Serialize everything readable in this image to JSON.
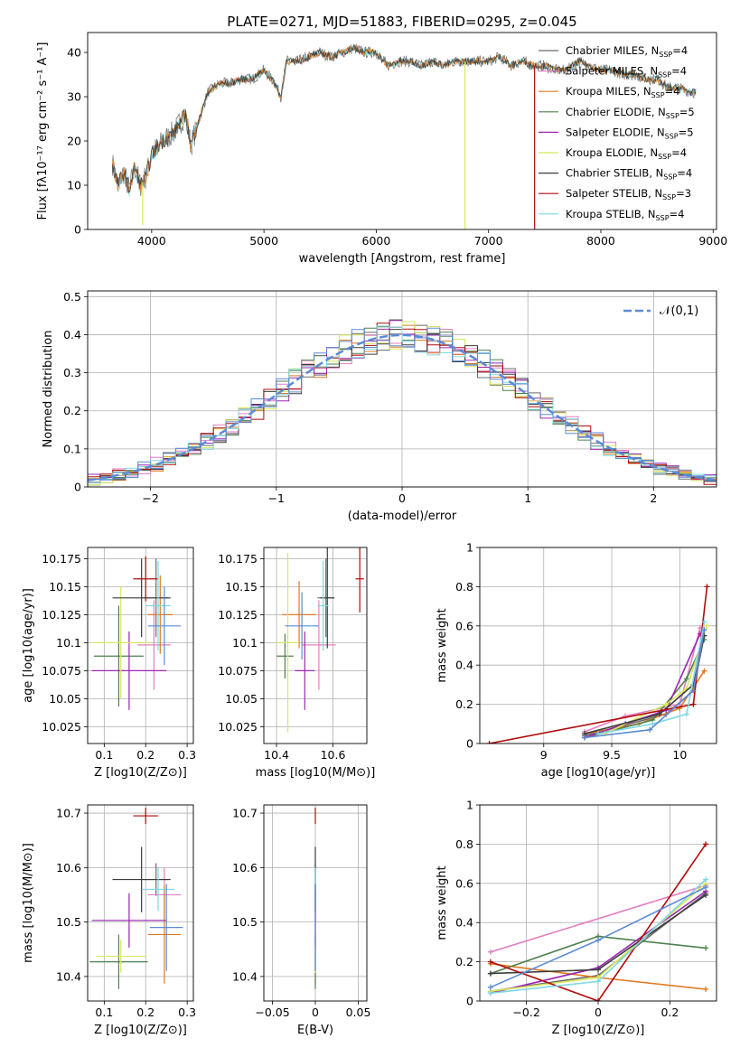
{
  "figure_title": "PLATE=0271, MJD=51883, FIBERID=0295, z=0.045",
  "models": [
    {
      "name": "Chabrier MILES",
      "nssp": "4",
      "color": "#6b6b6b"
    },
    {
      "name": "Salpeter MILES",
      "nssp": "4",
      "color": "#e37fbf"
    },
    {
      "name": "Kroupa MILES",
      "nssp": "4",
      "color": "#e07a22"
    },
    {
      "name": "Chabrier ELODIE",
      "nssp": "5",
      "color": "#4f7f4f"
    },
    {
      "name": "Salpeter ELODIE",
      "nssp": "5",
      "color": "#9b27b0"
    },
    {
      "name": "Kroupa ELODIE",
      "nssp": "4",
      "color": "#d8e85a"
    },
    {
      "name": "Chabrier STELIB",
      "nssp": "4",
      "color": "#3c3c3c"
    },
    {
      "name": "Salpeter STELIB",
      "nssp": "3",
      "color": "#b00b0b"
    },
    {
      "name": "Kroupa STELIB",
      "nssp": "4",
      "color": "#7fd9e3"
    }
  ],
  "chart_data": [
    {
      "type": "line",
      "name": "spectrum",
      "xlabel": "wavelength [Angstrom, rest frame]",
      "ylabel": "Flux [fλ10⁻¹⁷ erg cm⁻² s⁻¹ A⁻¹]",
      "xlim": [
        3430,
        9030
      ],
      "ylim": [
        0,
        44.5
      ],
      "xticks": [
        4000,
        5000,
        6000,
        7000,
        8000,
        9000
      ],
      "yticks": [
        0,
        10,
        20,
        30,
        40
      ],
      "x": [
        3650,
        3700,
        3750,
        3800,
        3850,
        3900,
        3950,
        4000,
        4100,
        4200,
        4300,
        4350,
        4400,
        4500,
        4600,
        4700,
        4800,
        4900,
        5000,
        5100,
        5150,
        5200,
        5300,
        5400,
        5500,
        5600,
        5700,
        5800,
        5900,
        6000,
        6100,
        6200,
        6300,
        6400,
        6500,
        6600,
        6700,
        6800,
        6900,
        7000,
        7100,
        7200,
        7300,
        7400,
        7500,
        7600,
        7700,
        7800,
        7900,
        8000,
        8100,
        8200,
        8300,
        8400,
        8500,
        8600,
        8700,
        8800
      ],
      "y": [
        15,
        10,
        13,
        9,
        14,
        10,
        12,
        17,
        20,
        22,
        26,
        19,
        23,
        31,
        33,
        33,
        34,
        34,
        36,
        33,
        30,
        38,
        38,
        39,
        40,
        39,
        40,
        41,
        40,
        40,
        37,
        38,
        38,
        37,
        38,
        37,
        38,
        38,
        38,
        38,
        39,
        37,
        38,
        37,
        37,
        36,
        36,
        38,
        37,
        36,
        36,
        35,
        35,
        34,
        34,
        32,
        32,
        31
      ],
      "dips": [
        {
          "x": 3920,
          "y": 1
        },
        {
          "x": 6790,
          "y": 0
        },
        {
          "x": 7410,
          "y": 0
        }
      ],
      "ssp_count_label": "N_SSP",
      "legend": "top-right"
    },
    {
      "type": "step",
      "name": "residuals",
      "xlabel": "(data-model)/error",
      "ylabel": "Normed distribution",
      "xlim": [
        -2.5,
        2.5
      ],
      "ylim": [
        0,
        0.515
      ],
      "xticks": [
        -2,
        -1,
        0,
        1,
        2
      ],
      "yticks": [
        0.0,
        0.1,
        0.2,
        0.3,
        0.4,
        0.5
      ],
      "bin_width": 0.1,
      "reference_curve": {
        "label": "𝒩(0,1)",
        "mean": 0,
        "sigma": 1,
        "color": "#5b8bd6"
      },
      "legend": "top-right",
      "grid": true
    },
    {
      "type": "scatter",
      "name": "age-vs-Z",
      "xlabel": "Z [log10(Z/Z⊙)]",
      "ylabel": "age [log10(age/yr)]",
      "xlim": [
        0.06,
        0.315
      ],
      "ylim": [
        10.01,
        10.185
      ],
      "xticks": [
        0.1,
        0.2,
        0.3
      ],
      "yticks": [
        10.025,
        10.05,
        10.075,
        10.1,
        10.125,
        10.15,
        10.175
      ],
      "points": [
        {
          "model": 0,
          "x": 0.225,
          "y": 10.14,
          "xerr": 0.03,
          "yerr": 0.035
        },
        {
          "model": 1,
          "x": 0.22,
          "y": 10.098,
          "xerr": 0.04,
          "yerr": 0.04
        },
        {
          "model": 2,
          "x": 0.235,
          "y": 10.125,
          "xerr": 0.03,
          "yerr": 0.035
        },
        {
          "model": 3,
          "x": 0.135,
          "y": 10.088,
          "xerr": 0.06,
          "yerr": 0.045
        },
        {
          "model": 4,
          "x": 0.16,
          "y": 10.075,
          "xerr": 0.09,
          "yerr": 0.035
        },
        {
          "model": 5,
          "x": 0.14,
          "y": 10.1,
          "xerr": 0.07,
          "yerr": 0.05
        },
        {
          "model": 6,
          "x": 0.19,
          "y": 10.14,
          "xerr": 0.07,
          "yerr": 0.035
        },
        {
          "model": 7,
          "x": 0.2,
          "y": 10.157,
          "xerr": 0.03,
          "yerr": 0.02
        },
        {
          "model": 8,
          "x": 0.23,
          "y": 10.133,
          "xerr": 0.03,
          "yerr": 0.04
        },
        {
          "model": 9,
          "x": 0.245,
          "y": 10.115,
          "xerr": 0.04,
          "yerr": 0.035
        }
      ],
      "grid": true
    },
    {
      "type": "scatter",
      "name": "age-vs-mass",
      "xlabel": "mass [log10(M/M⊙)]",
      "ylabel": "",
      "xlim": [
        10.355,
        10.72
      ],
      "ylim": [
        10.01,
        10.185
      ],
      "xticks": [
        10.4,
        10.6
      ],
      "yticks": [
        10.025,
        10.05,
        10.075,
        10.1,
        10.125,
        10.15,
        10.175
      ],
      "points": [
        {
          "model": 0,
          "x": 10.575,
          "y": 10.14,
          "xerr": 0.03,
          "yerr": 0.035
        },
        {
          "model": 1,
          "x": 10.55,
          "y": 10.098,
          "xerr": 0.06,
          "yerr": 0.04
        },
        {
          "model": 2,
          "x": 10.48,
          "y": 10.125,
          "xerr": 0.06,
          "yerr": 0.03
        },
        {
          "model": 3,
          "x": 10.43,
          "y": 10.088,
          "xerr": 0.03,
          "yerr": 0.02
        },
        {
          "model": 4,
          "x": 10.5,
          "y": 10.075,
          "xerr": 0.035,
          "yerr": 0.035
        },
        {
          "model": 5,
          "x": 10.44,
          "y": 10.1,
          "xerr": 0.04,
          "yerr": 0.08
        },
        {
          "model": 6,
          "x": 10.58,
          "y": 10.14,
          "xerr": 0.025,
          "yerr": 0.045
        },
        {
          "model": 7,
          "x": 10.695,
          "y": 10.157,
          "xerr": 0.015,
          "yerr": 0.03
        },
        {
          "model": 8,
          "x": 10.565,
          "y": 10.133,
          "xerr": 0.02,
          "yerr": 0.04
        },
        {
          "model": 9,
          "x": 10.49,
          "y": 10.115,
          "xerr": 0.06,
          "yerr": 0.03
        }
      ],
      "grid": true
    },
    {
      "type": "line",
      "name": "mass-weight-vs-age",
      "xlabel": "age [log10(age/yr)]",
      "ylabel": "mass weight",
      "xlim": [
        8.53,
        10.27
      ],
      "ylim": [
        0,
        1.0
      ],
      "xticks": [
        9.0,
        9.5,
        10.0
      ],
      "yticks": [
        0.0,
        0.2,
        0.4,
        0.6,
        0.8,
        1.0
      ],
      "series": [
        {
          "model": 0,
          "x": [
            9.3,
            9.9,
            10.1,
            10.18
          ],
          "y": [
            0.04,
            0.15,
            0.27,
            0.55
          ]
        },
        {
          "model": 1,
          "x": [
            9.3,
            9.6,
            10.0,
            10.15
          ],
          "y": [
            0.06,
            0.14,
            0.2,
            0.59
          ]
        },
        {
          "model": 2,
          "x": [
            9.3,
            9.7,
            10.0,
            10.18
          ],
          "y": [
            0.05,
            0.1,
            0.18,
            0.37
          ]
        },
        {
          "model": 3,
          "x": [
            9.3,
            9.8,
            10.05,
            10.18
          ],
          "y": [
            0.03,
            0.12,
            0.33,
            0.53
          ]
        },
        {
          "model": 4,
          "x": [
            9.3,
            9.6,
            9.9,
            10.15
          ],
          "y": [
            0.03,
            0.1,
            0.17,
            0.56
          ]
        },
        {
          "model": 5,
          "x": [
            9.45,
            9.9,
            10.05,
            10.2
          ],
          "y": [
            0.05,
            0.2,
            0.28,
            0.6
          ]
        },
        {
          "model": 6,
          "x": [
            9.3,
            9.85,
            10.1,
            10.18
          ],
          "y": [
            0.05,
            0.15,
            0.3,
            0.55
          ]
        },
        {
          "model": 7,
          "x": [
            8.6,
            10.1,
            10.2
          ],
          "y": [
            0.0,
            0.2,
            0.8
          ]
        },
        {
          "model": 8,
          "x": [
            9.4,
            9.8,
            10.05,
            10.18
          ],
          "y": [
            0.05,
            0.1,
            0.15,
            0.62
          ]
        },
        {
          "model": 9,
          "x": [
            9.3,
            9.78,
            10.1,
            10.18
          ],
          "y": [
            0.03,
            0.07,
            0.27,
            0.58
          ]
        }
      ],
      "grid": true
    },
    {
      "type": "scatter",
      "name": "mass-vs-Z",
      "xlabel": "Z [log10(Z/Z⊙)]",
      "ylabel": "mass [log10(M/M⊙)]",
      "xlim": [
        0.06,
        0.315
      ],
      "ylim": [
        10.355,
        10.715
      ],
      "xticks": [
        0.1,
        0.2,
        0.3
      ],
      "yticks": [
        10.4,
        10.5,
        10.6,
        10.7
      ],
      "points": [
        {
          "model": 0,
          "x": 0.225,
          "y": 10.578,
          "xerr": 0.03,
          "yerr": 0.03
        },
        {
          "model": 1,
          "x": 0.245,
          "y": 10.55,
          "xerr": 0.04,
          "yerr": 0.05
        },
        {
          "model": 2,
          "x": 0.245,
          "y": 10.477,
          "xerr": 0.04,
          "yerr": 0.09
        },
        {
          "model": 3,
          "x": 0.135,
          "y": 10.427,
          "xerr": 0.07,
          "yerr": 0.05
        },
        {
          "model": 4,
          "x": 0.16,
          "y": 10.503,
          "xerr": 0.09,
          "yerr": 0.05
        },
        {
          "model": 5,
          "x": 0.14,
          "y": 10.437,
          "xerr": 0.06,
          "yerr": 0.03
        },
        {
          "model": 6,
          "x": 0.19,
          "y": 10.578,
          "xerr": 0.07,
          "yerr": 0.06
        },
        {
          "model": 7,
          "x": 0.2,
          "y": 10.695,
          "xerr": 0.03,
          "yerr": 0.015
        },
        {
          "model": 8,
          "x": 0.23,
          "y": 10.56,
          "xerr": 0.04,
          "yerr": 0.04
        },
        {
          "model": 9,
          "x": 0.25,
          "y": 10.49,
          "xerr": 0.04,
          "yerr": 0.08
        }
      ],
      "grid": true
    },
    {
      "type": "scatter",
      "name": "mass-vs-ebv",
      "xlabel": "E(B-V)",
      "ylabel": "",
      "xlim": [
        -0.06,
        0.06
      ],
      "ylim": [
        10.355,
        10.715
      ],
      "xticks": [
        -0.05,
        0.0,
        0.05
      ],
      "yticks": [
        10.4,
        10.5,
        10.6,
        10.7
      ],
      "points": [
        {
          "model": 0,
          "x": 0.0,
          "y": 10.578,
          "xerr": 0,
          "yerr": 0.03
        },
        {
          "model": 1,
          "x": 0.0,
          "y": 10.55,
          "xerr": 0,
          "yerr": 0.05
        },
        {
          "model": 2,
          "x": 0.0,
          "y": 10.477,
          "xerr": 0,
          "yerr": 0.09
        },
        {
          "model": 3,
          "x": 0.0,
          "y": 10.427,
          "xerr": 0,
          "yerr": 0.05
        },
        {
          "model": 4,
          "x": 0.0,
          "y": 10.503,
          "xerr": 0,
          "yerr": 0.05
        },
        {
          "model": 5,
          "x": 0.0,
          "y": 10.437,
          "xerr": 0,
          "yerr": 0.03
        },
        {
          "model": 6,
          "x": 0.0,
          "y": 10.578,
          "xerr": 0,
          "yerr": 0.06
        },
        {
          "model": 7,
          "x": 0.0,
          "y": 10.695,
          "xerr": 0,
          "yerr": 0.015
        },
        {
          "model": 8,
          "x": 0.0,
          "y": 10.56,
          "xerr": 0,
          "yerr": 0.04
        },
        {
          "model": 9,
          "x": 0.0,
          "y": 10.49,
          "xerr": 0,
          "yerr": 0.08
        }
      ],
      "grid": true
    },
    {
      "type": "line",
      "name": "mass-weight-vs-Z",
      "xlabel": "Z [log10(Z/Z⊙)]",
      "ylabel": "mass weight",
      "xlim": [
        -0.33,
        0.33
      ],
      "ylim": [
        0,
        1.0
      ],
      "xticks": [
        -0.2,
        0.0,
        0.2
      ],
      "yticks": [
        0.0,
        0.2,
        0.4,
        0.6,
        0.8,
        1.0
      ],
      "series": [
        {
          "model": 0,
          "x": [
            -0.3,
            0.0,
            0.3
          ],
          "y": [
            0.05,
            0.13,
            0.55
          ]
        },
        {
          "model": 1,
          "x": [
            -0.3,
            0.3
          ],
          "y": [
            0.25,
            0.59
          ]
        },
        {
          "model": 2,
          "x": [
            -0.3,
            0.0,
            0.3
          ],
          "y": [
            0.19,
            0.12,
            0.06
          ]
        },
        {
          "model": 3,
          "x": [
            -0.3,
            0.0,
            0.3
          ],
          "y": [
            0.14,
            0.33,
            0.27
          ]
        },
        {
          "model": 4,
          "x": [
            -0.3,
            0.0,
            0.3
          ],
          "y": [
            0.04,
            0.17,
            0.56
          ]
        },
        {
          "model": 5,
          "x": [
            -0.3,
            0.0,
            0.3
          ],
          "y": [
            0.05,
            0.12,
            0.6
          ]
        },
        {
          "model": 6,
          "x": [
            -0.3,
            0.0,
            0.3
          ],
          "y": [
            0.14,
            0.16,
            0.54
          ]
        },
        {
          "model": 7,
          "x": [
            -0.3,
            0.0,
            0.3
          ],
          "y": [
            0.2,
            0.0,
            0.8
          ]
        },
        {
          "model": 8,
          "x": [
            -0.3,
            0.0,
            0.3
          ],
          "y": [
            0.04,
            0.1,
            0.62
          ]
        },
        {
          "model": 9,
          "x": [
            -0.3,
            0.0,
            0.3
          ],
          "y": [
            0.07,
            0.31,
            0.58
          ]
        }
      ],
      "grid": true
    }
  ]
}
